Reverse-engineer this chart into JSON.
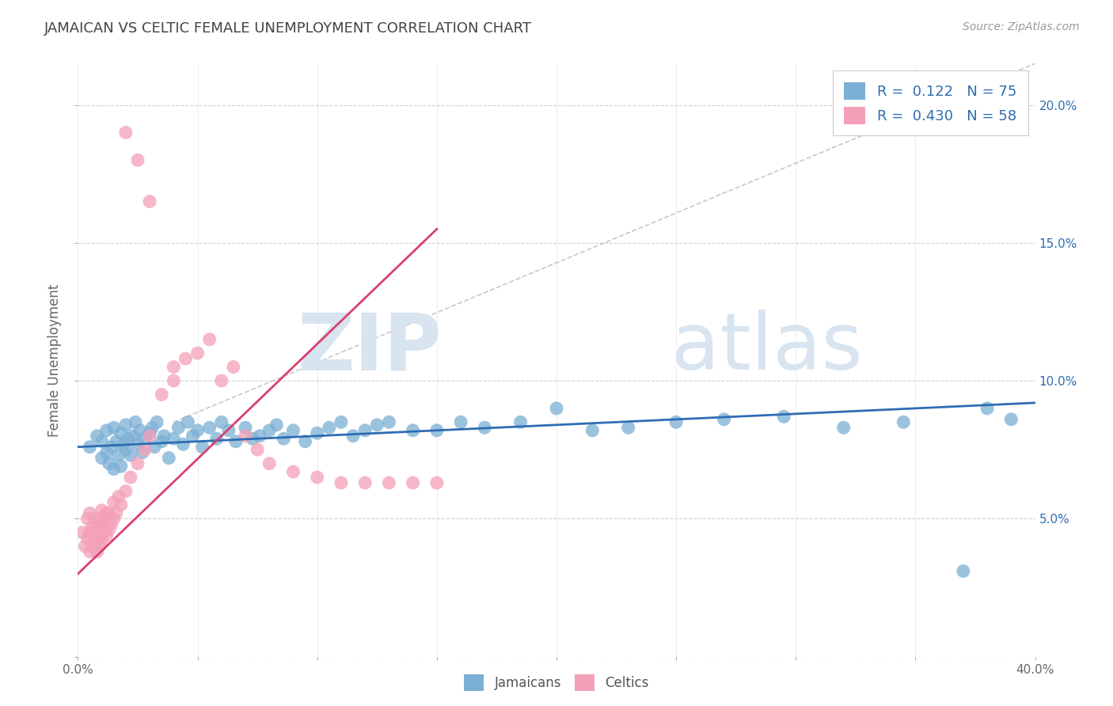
{
  "title": "JAMAICAN VS CELTIC FEMALE UNEMPLOYMENT CORRELATION CHART",
  "source": "Source: ZipAtlas.com",
  "ylabel": "Female Unemployment",
  "xlim": [
    0.0,
    0.4
  ],
  "ylim": [
    0.0,
    0.215
  ],
  "xticks": [
    0.0,
    0.05,
    0.1,
    0.15,
    0.2,
    0.25,
    0.3,
    0.35,
    0.4
  ],
  "xticklabels": [
    "0.0%",
    "",
    "",
    "",
    "",
    "",
    "",
    "",
    "40.0%"
  ],
  "yticks": [
    0.0,
    0.05,
    0.1,
    0.15,
    0.2
  ],
  "yticklabels": [
    "",
    "5.0%",
    "10.0%",
    "15.0%",
    "20.0%"
  ],
  "watermark_zip": "ZIP",
  "watermark_atlas": "atlas",
  "jamaicans_color": "#7bafd4",
  "celtics_color": "#f4a0b8",
  "jamaicans_line_color": "#2e6db4",
  "celtics_line_color": "#d94070",
  "background_color": "#ffffff",
  "grid_color": "#cccccc",
  "title_color": "#444444",
  "right_ytick_color": "#2e6db4",
  "jam_line_x0": 0.0,
  "jam_line_y0": 0.076,
  "jam_line_x1": 0.4,
  "jam_line_y1": 0.092,
  "cel_line_x0": 0.0,
  "cel_line_y0": 0.03,
  "cel_line_x1": 0.15,
  "cel_line_y1": 0.155,
  "dash_line_x0": 0.04,
  "dash_line_y0": 0.085,
  "dash_line_x1": 0.4,
  "dash_line_y1": 0.215,
  "jamaicans_x": [
    0.005,
    0.008,
    0.01,
    0.01,
    0.012,
    0.012,
    0.013,
    0.014,
    0.015,
    0.015,
    0.016,
    0.017,
    0.018,
    0.018,
    0.019,
    0.02,
    0.02,
    0.021,
    0.022,
    0.023,
    0.024,
    0.025,
    0.026,
    0.027,
    0.028,
    0.03,
    0.031,
    0.032,
    0.033,
    0.035,
    0.036,
    0.038,
    0.04,
    0.042,
    0.044,
    0.046,
    0.048,
    0.05,
    0.052,
    0.055,
    0.058,
    0.06,
    0.063,
    0.066,
    0.07,
    0.073,
    0.076,
    0.08,
    0.083,
    0.086,
    0.09,
    0.095,
    0.1,
    0.105,
    0.11,
    0.115,
    0.12,
    0.125,
    0.13,
    0.14,
    0.15,
    0.16,
    0.17,
    0.185,
    0.2,
    0.215,
    0.23,
    0.25,
    0.27,
    0.295,
    0.32,
    0.345,
    0.37,
    0.38,
    0.39
  ],
  "jamaicans_y": [
    0.076,
    0.08,
    0.072,
    0.078,
    0.074,
    0.082,
    0.07,
    0.076,
    0.068,
    0.083,
    0.078,
    0.073,
    0.081,
    0.069,
    0.077,
    0.075,
    0.084,
    0.079,
    0.073,
    0.08,
    0.085,
    0.077,
    0.082,
    0.074,
    0.079,
    0.081,
    0.083,
    0.076,
    0.085,
    0.078,
    0.08,
    0.072,
    0.079,
    0.083,
    0.077,
    0.085,
    0.08,
    0.082,
    0.076,
    0.083,
    0.079,
    0.085,
    0.082,
    0.078,
    0.083,
    0.079,
    0.08,
    0.082,
    0.084,
    0.079,
    0.082,
    0.078,
    0.081,
    0.083,
    0.085,
    0.08,
    0.082,
    0.084,
    0.085,
    0.082,
    0.082,
    0.085,
    0.083,
    0.085,
    0.09,
    0.082,
    0.083,
    0.085,
    0.086,
    0.087,
    0.083,
    0.085,
    0.031,
    0.09,
    0.086
  ],
  "celtics_x": [
    0.002,
    0.003,
    0.004,
    0.004,
    0.005,
    0.005,
    0.005,
    0.006,
    0.006,
    0.007,
    0.007,
    0.008,
    0.008,
    0.009,
    0.009,
    0.009,
    0.01,
    0.01,
    0.01,
    0.01,
    0.011,
    0.011,
    0.012,
    0.012,
    0.013,
    0.013,
    0.014,
    0.015,
    0.015,
    0.016,
    0.017,
    0.018,
    0.02,
    0.022,
    0.025,
    0.028,
    0.03,
    0.035,
    0.04,
    0.04,
    0.045,
    0.05,
    0.055,
    0.06,
    0.065,
    0.07,
    0.075,
    0.08,
    0.09,
    0.1,
    0.11,
    0.12,
    0.13,
    0.14,
    0.15,
    0.02,
    0.025,
    0.03
  ],
  "celtics_y": [
    0.045,
    0.04,
    0.05,
    0.043,
    0.038,
    0.045,
    0.052,
    0.04,
    0.047,
    0.042,
    0.05,
    0.038,
    0.046,
    0.043,
    0.048,
    0.04,
    0.042,
    0.048,
    0.05,
    0.053,
    0.045,
    0.05,
    0.044,
    0.052,
    0.046,
    0.052,
    0.048,
    0.05,
    0.056,
    0.052,
    0.058,
    0.055,
    0.06,
    0.065,
    0.07,
    0.075,
    0.08,
    0.095,
    0.1,
    0.105,
    0.108,
    0.11,
    0.115,
    0.1,
    0.105,
    0.08,
    0.075,
    0.07,
    0.067,
    0.065,
    0.063,
    0.063,
    0.063,
    0.063,
    0.063,
    0.19,
    0.18,
    0.165
  ]
}
